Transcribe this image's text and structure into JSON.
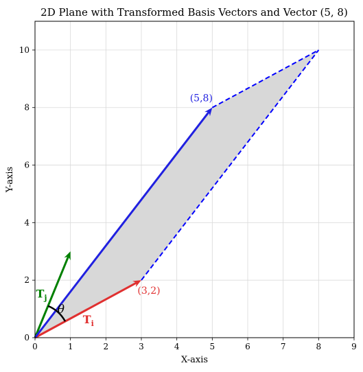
{
  "chart_data": {
    "type": "line",
    "title": "2D Plane with Transformed Basis Vectors and Vector (5, 8)",
    "xlabel": "X-axis",
    "ylabel": "Y-axis",
    "xlim": [
      0,
      9
    ],
    "ylim": [
      0,
      11
    ],
    "xticks": [
      "0",
      "1",
      "2",
      "3",
      "4",
      "5",
      "6",
      "7",
      "8",
      "9"
    ],
    "yticks": [
      "0",
      "2",
      "4",
      "6",
      "8",
      "10"
    ],
    "grid": true,
    "vectors": [
      {
        "name": "Tj",
        "from": [
          0,
          0
        ],
        "to": [
          1,
          3
        ],
        "color": "#008000"
      },
      {
        "name": "Ti",
        "from": [
          0,
          0
        ],
        "to": [
          3,
          2
        ],
        "color": "#e03030"
      },
      {
        "name": "(5,8)",
        "from": [
          0,
          0
        ],
        "to": [
          5,
          8
        ],
        "color": "#2020e0"
      }
    ],
    "parallelogram": [
      [
        0,
        0
      ],
      [
        3,
        2
      ],
      [
        8,
        10
      ],
      [
        5,
        8
      ]
    ],
    "dashed_edges": [
      {
        "from": [
          3,
          2
        ],
        "to": [
          8,
          10
        ]
      },
      {
        "from": [
          5,
          8
        ],
        "to": [
          8,
          10
        ]
      }
    ],
    "labels": {
      "vector": "(5,8)",
      "ti_point": "(3,2)",
      "ti_symbol": "T",
      "ti_sub": "i",
      "tj_symbol": "T",
      "tj_sub": "j",
      "angle": "θ"
    },
    "colors": {
      "blue": "#2020e0",
      "red": "#e03030",
      "green": "#008000",
      "fill": "#d8d8d8",
      "dashed": "#0000ff"
    }
  }
}
